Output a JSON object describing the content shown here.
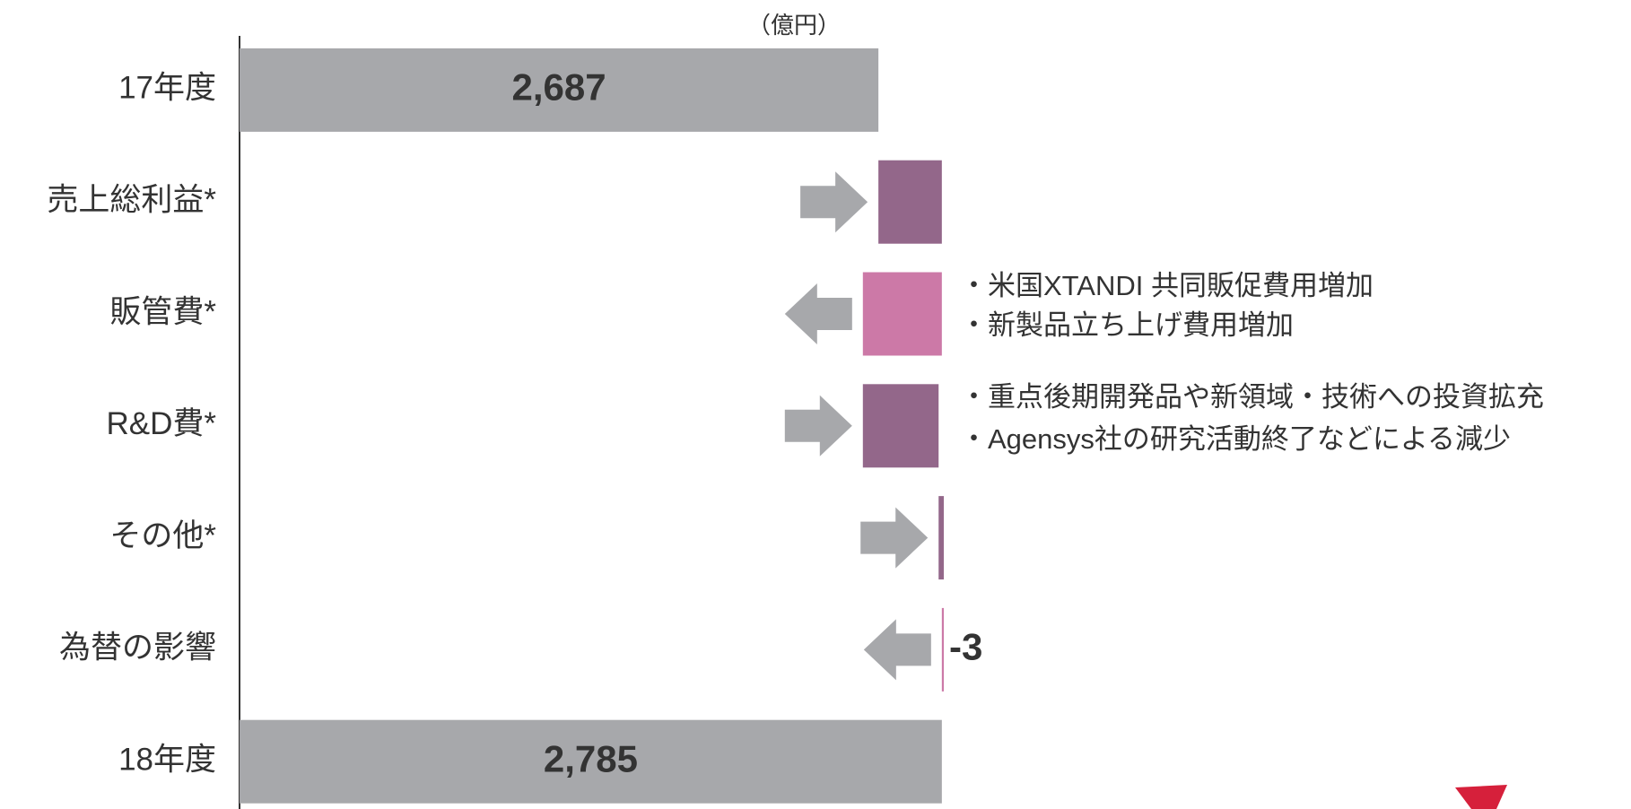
{
  "chart_data": {
    "type": "waterfall",
    "unit_label": "（億円）",
    "categories": [
      "17年度",
      "売上総利益*",
      "販管費*",
      "R&D費*",
      "その他*",
      "為替の影響",
      "18年度"
    ],
    "measures": [
      "total",
      "relative",
      "relative",
      "relative",
      "relative",
      "relative",
      "total"
    ],
    "values": [
      2687,
      98,
      -122,
      117,
      8,
      -3,
      2785
    ],
    "value_labels": [
      "2,687",
      null,
      null,
      null,
      null,
      "-3",
      "2,785"
    ],
    "colors": [
      "#a7a8ab",
      "#93678a",
      "#cc79a7",
      "#93678a",
      "#93678a",
      "#cc79a7",
      "#a7a8ab"
    ],
    "arrow_color": "#a7a8ab",
    "xlim": [
      1700,
      2900
    ],
    "annotations": [
      [
        "・米国XTANDI 共同販促費用増加",
        "・新製品立ち上げ費用増加"
      ],
      [
        "・重点後期開発品や新領域・技術への投資拡充",
        "・Agensys社の研究活動終了などによる減少"
      ]
    ]
  }
}
